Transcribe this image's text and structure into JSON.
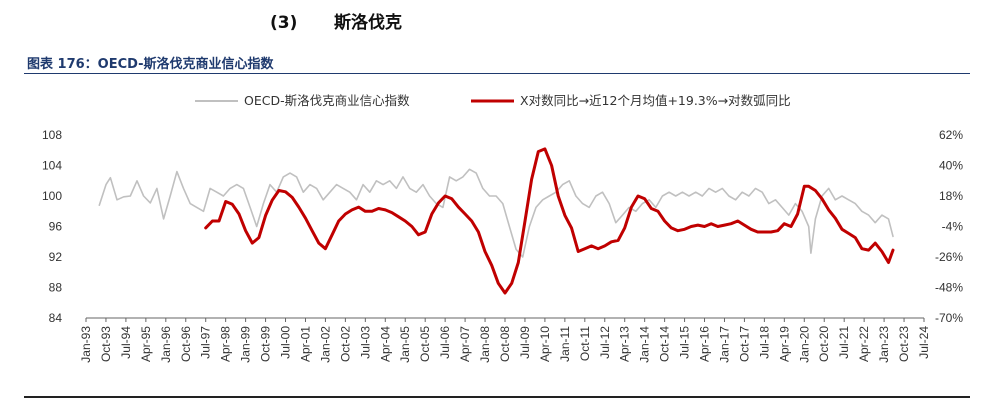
{
  "section": {
    "number": "(3)",
    "title": "斯洛伐克"
  },
  "figure_title": "图表 176：OECD-斯洛伐克商业信心指数",
  "colors": {
    "line1": "#c0c0c0",
    "line2": "#c00000",
    "title": "#1f3a6e"
  },
  "chart_data": {
    "type": "line",
    "title": "图表 176：OECD-斯洛伐克商业信心指数",
    "legend_position": "top",
    "grid": false,
    "x_range": [
      "1993-01",
      "2024-07"
    ],
    "y_left": {
      "min": 84,
      "max": 108,
      "ticks": [
        "84",
        "88",
        "92",
        "96",
        "100",
        "104",
        "108"
      ]
    },
    "y_right": {
      "min": -70,
      "max": 62,
      "ticks": [
        "-70%",
        "-48%",
        "-26%",
        "-4%",
        "18%",
        "40%",
        "62%"
      ]
    },
    "x_ticks": [
      "Jan-93",
      "Oct-93",
      "Jul-94",
      "Apr-95",
      "Jan-96",
      "Oct-96",
      "Jul-97",
      "Apr-98",
      "Jan-99",
      "Oct-99",
      "Jul-00",
      "Apr-01",
      "Jan-02",
      "Oct-02",
      "Jul-03",
      "Apr-04",
      "Jan-05",
      "Oct-05",
      "Jul-06",
      "Apr-07",
      "Jan-08",
      "Oct-08",
      "Jul-09",
      "Apr-10",
      "Jan-11",
      "Oct-11",
      "Jul-12",
      "Apr-13",
      "Jan-14",
      "Oct-14",
      "Jul-15",
      "Apr-16",
      "Jan-17",
      "Oct-17",
      "Jul-18",
      "Apr-19",
      "Jan-20",
      "Oct-20",
      "Jul-21",
      "Apr-22",
      "Jan-23",
      "Oct-23",
      "Jul-24"
    ],
    "series": [
      {
        "name": "OECD-斯洛伐克商业信心指数",
        "axis": "left",
        "color": "#c0c0c0",
        "points": [
          [
            "1993-07",
            98.8
          ],
          [
            "1993-10",
            101.5
          ],
          [
            "1993-12",
            102.4
          ],
          [
            "1994-03",
            99.5
          ],
          [
            "1994-06",
            99.9
          ],
          [
            "1994-09",
            100.0
          ],
          [
            "1994-12",
            102.0
          ],
          [
            "1995-03",
            100.0
          ],
          [
            "1995-06",
            99.1
          ],
          [
            "1995-09",
            101.0
          ],
          [
            "1995-12",
            97.0
          ],
          [
            "1996-03",
            100.0
          ],
          [
            "1996-06",
            103.2
          ],
          [
            "1996-09",
            101.0
          ],
          [
            "1996-12",
            99.0
          ],
          [
            "1997-03",
            98.5
          ],
          [
            "1997-06",
            98.0
          ],
          [
            "1997-09",
            101.0
          ],
          [
            "1997-12",
            100.5
          ],
          [
            "1998-03",
            100.0
          ],
          [
            "1998-06",
            101.0
          ],
          [
            "1998-09",
            101.5
          ],
          [
            "1998-12",
            101.0
          ],
          [
            "1999-03",
            98.5
          ],
          [
            "1999-06",
            96.0
          ],
          [
            "1999-09",
            99.0
          ],
          [
            "1999-12",
            101.5
          ],
          [
            "2000-03",
            100.5
          ],
          [
            "2000-06",
            102.5
          ],
          [
            "2000-09",
            103.0
          ],
          [
            "2000-12",
            102.5
          ],
          [
            "2001-03",
            100.5
          ],
          [
            "2001-06",
            101.5
          ],
          [
            "2001-09",
            101.0
          ],
          [
            "2001-12",
            99.5
          ],
          [
            "2002-03",
            100.5
          ],
          [
            "2002-06",
            101.5
          ],
          [
            "2002-09",
            101.0
          ],
          [
            "2002-12",
            100.5
          ],
          [
            "2003-03",
            99.5
          ],
          [
            "2003-06",
            101.5
          ],
          [
            "2003-09",
            100.5
          ],
          [
            "2003-12",
            102.0
          ],
          [
            "2004-03",
            101.5
          ],
          [
            "2004-06",
            102.0
          ],
          [
            "2004-09",
            101.0
          ],
          [
            "2004-12",
            102.5
          ],
          [
            "2005-03",
            101.0
          ],
          [
            "2005-06",
            100.5
          ],
          [
            "2005-09",
            101.5
          ],
          [
            "2005-12",
            100.0
          ],
          [
            "2006-03",
            99.0
          ],
          [
            "2006-06",
            98.5
          ],
          [
            "2006-09",
            102.5
          ],
          [
            "2006-12",
            102.0
          ],
          [
            "2007-03",
            102.5
          ],
          [
            "2007-06",
            103.5
          ],
          [
            "2007-09",
            103.0
          ],
          [
            "2007-12",
            101.0
          ],
          [
            "2008-03",
            100.0
          ],
          [
            "2008-06",
            100.0
          ],
          [
            "2008-09",
            99.0
          ],
          [
            "2008-12",
            96.0
          ],
          [
            "2009-03",
            93.0
          ],
          [
            "2009-06",
            92.0
          ],
          [
            "2009-09",
            96.0
          ],
          [
            "2009-12",
            98.5
          ],
          [
            "2010-03",
            99.5
          ],
          [
            "2010-06",
            100.0
          ],
          [
            "2010-09",
            100.5
          ],
          [
            "2010-12",
            101.5
          ],
          [
            "2011-03",
            102.0
          ],
          [
            "2011-06",
            100.0
          ],
          [
            "2011-09",
            99.0
          ],
          [
            "2011-12",
            98.5
          ],
          [
            "2012-03",
            100.0
          ],
          [
            "2012-06",
            100.5
          ],
          [
            "2012-09",
            99.0
          ],
          [
            "2012-12",
            96.5
          ],
          [
            "2013-03",
            97.5
          ],
          [
            "2013-06",
            98.5
          ],
          [
            "2013-09",
            98.0
          ],
          [
            "2013-12",
            99.0
          ],
          [
            "2014-03",
            99.5
          ],
          [
            "2014-06",
            98.5
          ],
          [
            "2014-09",
            100.0
          ],
          [
            "2014-12",
            100.5
          ],
          [
            "2015-03",
            100.0
          ],
          [
            "2015-06",
            100.5
          ],
          [
            "2015-09",
            100.0
          ],
          [
            "2015-12",
            100.5
          ],
          [
            "2016-03",
            100.0
          ],
          [
            "2016-06",
            101.0
          ],
          [
            "2016-09",
            100.5
          ],
          [
            "2016-12",
            101.0
          ],
          [
            "2017-03",
            100.0
          ],
          [
            "2017-06",
            99.5
          ],
          [
            "2017-09",
            100.5
          ],
          [
            "2017-12",
            100.0
          ],
          [
            "2018-03",
            101.0
          ],
          [
            "2018-06",
            100.5
          ],
          [
            "2018-09",
            99.0
          ],
          [
            "2018-12",
            99.5
          ],
          [
            "2019-03",
            98.5
          ],
          [
            "2019-06",
            97.5
          ],
          [
            "2019-09",
            99.0
          ],
          [
            "2019-12",
            98.0
          ],
          [
            "2020-03",
            96.0
          ],
          [
            "2020-04",
            92.5
          ],
          [
            "2020-06",
            97.0
          ],
          [
            "2020-09",
            100.0
          ],
          [
            "2020-12",
            101.0
          ],
          [
            "2021-03",
            99.5
          ],
          [
            "2021-06",
            100.0
          ],
          [
            "2021-09",
            99.5
          ],
          [
            "2021-12",
            99.0
          ],
          [
            "2022-03",
            98.0
          ],
          [
            "2022-06",
            97.5
          ],
          [
            "2022-09",
            96.5
          ],
          [
            "2022-12",
            97.5
          ],
          [
            "2023-03",
            97.0
          ],
          [
            "2023-05",
            94.7
          ]
        ]
      },
      {
        "name": "X对数同比→近12个月均值+19.3%→对数弧同比",
        "axis": "right",
        "color": "#c00000",
        "points": [
          [
            "1997-07",
            -5
          ],
          [
            "1997-10",
            0
          ],
          [
            "1998-01",
            0
          ],
          [
            "1998-04",
            14
          ],
          [
            "1998-07",
            12
          ],
          [
            "1998-10",
            5
          ],
          [
            "1999-01",
            -7
          ],
          [
            "1999-04",
            -16
          ],
          [
            "1999-07",
            -12
          ],
          [
            "1999-10",
            4
          ],
          [
            "2000-01",
            15
          ],
          [
            "2000-04",
            22
          ],
          [
            "2000-07",
            21
          ],
          [
            "2000-10",
            17
          ],
          [
            "2001-01",
            10
          ],
          [
            "2001-04",
            2
          ],
          [
            "2001-07",
            -7
          ],
          [
            "2001-10",
            -16
          ],
          [
            "2002-01",
            -20
          ],
          [
            "2002-04",
            -10
          ],
          [
            "2002-07",
            0
          ],
          [
            "2002-10",
            5
          ],
          [
            "2003-01",
            8
          ],
          [
            "2003-04",
            10
          ],
          [
            "2003-07",
            7
          ],
          [
            "2003-10",
            7
          ],
          [
            "2004-01",
            9
          ],
          [
            "2004-04",
            8
          ],
          [
            "2004-07",
            6
          ],
          [
            "2004-10",
            3
          ],
          [
            "2005-01",
            0
          ],
          [
            "2005-04",
            -4
          ],
          [
            "2005-07",
            -10
          ],
          [
            "2005-10",
            -8
          ],
          [
            "2006-01",
            5
          ],
          [
            "2006-04",
            13
          ],
          [
            "2006-07",
            18
          ],
          [
            "2006-10",
            16
          ],
          [
            "2007-01",
            10
          ],
          [
            "2007-04",
            5
          ],
          [
            "2007-07",
            0
          ],
          [
            "2007-10",
            -8
          ],
          [
            "2008-01",
            -22
          ],
          [
            "2008-04",
            -32
          ],
          [
            "2008-07",
            -45
          ],
          [
            "2008-10",
            -52
          ],
          [
            "2009-01",
            -45
          ],
          [
            "2009-04",
            -30
          ],
          [
            "2009-07",
            0
          ],
          [
            "2009-10",
            30
          ],
          [
            "2010-01",
            50
          ],
          [
            "2010-04",
            52
          ],
          [
            "2010-07",
            40
          ],
          [
            "2010-10",
            18
          ],
          [
            "2011-01",
            4
          ],
          [
            "2011-04",
            -5
          ],
          [
            "2011-07",
            -22
          ],
          [
            "2011-10",
            -20
          ],
          [
            "2012-01",
            -18
          ],
          [
            "2012-04",
            -20
          ],
          [
            "2012-07",
            -18
          ],
          [
            "2012-10",
            -15
          ],
          [
            "2013-01",
            -14
          ],
          [
            "2013-04",
            -5
          ],
          [
            "2013-07",
            10
          ],
          [
            "2013-10",
            18
          ],
          [
            "2014-01",
            16
          ],
          [
            "2014-04",
            9
          ],
          [
            "2014-07",
            7
          ],
          [
            "2014-10",
            0
          ],
          [
            "2015-01",
            -5
          ],
          [
            "2015-04",
            -7
          ],
          [
            "2015-07",
            -6
          ],
          [
            "2015-10",
            -4
          ],
          [
            "2016-01",
            -3
          ],
          [
            "2016-04",
            -4
          ],
          [
            "2016-07",
            -2
          ],
          [
            "2016-10",
            -4
          ],
          [
            "2017-01",
            -3
          ],
          [
            "2017-04",
            -2
          ],
          [
            "2017-07",
            0
          ],
          [
            "2017-10",
            -3
          ],
          [
            "2018-01",
            -6
          ],
          [
            "2018-04",
            -8
          ],
          [
            "2018-07",
            -8
          ],
          [
            "2018-10",
            -8
          ],
          [
            "2019-01",
            -7
          ],
          [
            "2019-04",
            -2
          ],
          [
            "2019-07",
            -4
          ],
          [
            "2019-10",
            5
          ],
          [
            "2020-01",
            25
          ],
          [
            "2020-03",
            25
          ],
          [
            "2020-06",
            22
          ],
          [
            "2020-09",
            16
          ],
          [
            "2020-12",
            8
          ],
          [
            "2021-03",
            2
          ],
          [
            "2021-06",
            -6
          ],
          [
            "2021-09",
            -9
          ],
          [
            "2021-12",
            -12
          ],
          [
            "2022-03",
            -20
          ],
          [
            "2022-06",
            -21
          ],
          [
            "2022-09",
            -16
          ],
          [
            "2022-12",
            -22
          ],
          [
            "2023-03",
            -30
          ],
          [
            "2023-05",
            -21
          ]
        ]
      }
    ]
  }
}
